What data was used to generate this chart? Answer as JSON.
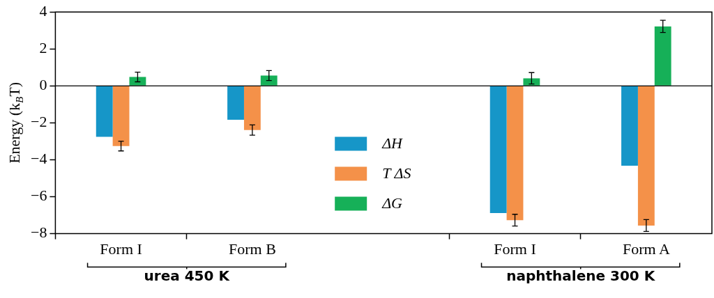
{
  "chart_data": {
    "type": "bar",
    "ylabel": "Energy (k$_{B}$T)",
    "categories": [
      "Form I",
      "Form B",
      null,
      "Form I",
      "Form A"
    ],
    "series": [
      {
        "name": "ΔH",
        "color": "#1696c8",
        "values": [
          -2.76,
          -1.83,
          null,
          -6.88,
          -4.32
        ]
      },
      {
        "name": "T ΔS",
        "color": "#f49149",
        "values": [
          -3.26,
          -2.39,
          null,
          -7.27,
          -7.56
        ],
        "errors": [
          0.26,
          0.28,
          null,
          0.32,
          0.32
        ]
      },
      {
        "name": "ΔG",
        "color": "#16b058",
        "values": [
          0.48,
          0.56,
          null,
          0.41,
          3.22
        ],
        "errors": [
          0.26,
          0.27,
          null,
          0.31,
          0.33
        ]
      }
    ],
    "ylim": [
      -8,
      4
    ],
    "yticks": [
      {
        "value": -8,
        "label": "−8"
      },
      {
        "value": -6,
        "label": "−6"
      },
      {
        "value": -4,
        "label": "−4"
      },
      {
        "value": -2,
        "label": "−2"
      },
      0,
      2,
      4
    ],
    "ref_lines": [
      {
        "axis": "y",
        "value": 0,
        "color": "#000000"
      }
    ],
    "annotations": [
      "urea 450 K",
      "naphthalene 300 K"
    ],
    "grid": false,
    "legend": "center"
  }
}
